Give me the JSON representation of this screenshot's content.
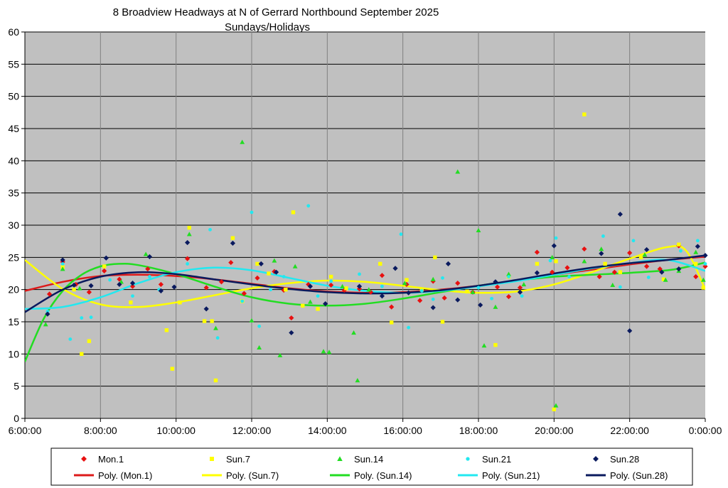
{
  "chart_data": {
    "type": "scatter",
    "title": "8 Broadview Headways at N of Gerrard Northbound September 2025",
    "subtitle": "Sundays/Holidays",
    "xlabel": "",
    "ylabel": "",
    "x_unit": "hours",
    "xlim": [
      6,
      24
    ],
    "ylim": [
      0,
      60
    ],
    "x_ticks": [
      "6:00:00",
      "8:00:00",
      "10:00:00",
      "12:00:00",
      "14:00:00",
      "16:00:00",
      "18:00:00",
      "20:00:00",
      "22:00:00",
      "0:00:00"
    ],
    "y_ticks": [
      0,
      5,
      10,
      15,
      20,
      25,
      30,
      35,
      40,
      45,
      50,
      55,
      60
    ],
    "grid": true,
    "plot_background": "#c0c0c0",
    "legend_position": "bottom",
    "series": [
      {
        "name": "Mon.1",
        "marker": "diamond",
        "color": "#e81010",
        "points": [
          [
            6.65,
            19.3
          ],
          [
            7.0,
            24.3
          ],
          [
            7.35,
            20.8
          ],
          [
            7.7,
            19.6
          ],
          [
            8.1,
            22.9
          ],
          [
            8.5,
            21.6
          ],
          [
            8.85,
            20.5
          ],
          [
            9.25,
            23.2
          ],
          [
            9.6,
            20.8
          ],
          [
            10.3,
            24.8
          ],
          [
            10.8,
            20.3
          ],
          [
            11.2,
            21.2
          ],
          [
            11.45,
            24.2
          ],
          [
            11.8,
            19.4
          ],
          [
            12.15,
            21.8
          ],
          [
            12.6,
            22.8
          ],
          [
            12.85,
            19.9
          ],
          [
            13.05,
            15.6
          ],
          [
            13.5,
            20.8
          ],
          [
            14.1,
            20.7
          ],
          [
            14.45,
            19.9
          ],
          [
            14.85,
            20.1
          ],
          [
            15.15,
            19.6
          ],
          [
            15.45,
            22.2
          ],
          [
            15.7,
            17.3
          ],
          [
            16.1,
            20.8
          ],
          [
            16.45,
            18.3
          ],
          [
            16.8,
            21.3
          ],
          [
            17.1,
            18.7
          ],
          [
            17.45,
            21.0
          ],
          [
            17.85,
            19.6
          ],
          [
            18.5,
            20.4
          ],
          [
            18.8,
            18.9
          ],
          [
            19.1,
            20.3
          ],
          [
            19.55,
            25.8
          ],
          [
            19.95,
            22.7
          ],
          [
            20.35,
            23.4
          ],
          [
            20.8,
            26.3
          ],
          [
            21.2,
            22.0
          ],
          [
            21.6,
            22.7
          ],
          [
            22.0,
            25.7
          ],
          [
            22.45,
            23.6
          ],
          [
            22.8,
            23.2
          ],
          [
            23.3,
            26.8
          ],
          [
            23.75,
            22.0
          ],
          [
            24.0,
            23.6
          ]
        ]
      },
      {
        "name": "Sun.7",
        "marker": "square",
        "color": "#ffff00",
        "points": [
          [
            7.0,
            23.5
          ],
          [
            7.3,
            20.0
          ],
          [
            7.5,
            10.0
          ],
          [
            7.7,
            12.0
          ],
          [
            8.1,
            23.6
          ],
          [
            8.8,
            18.0
          ],
          [
            9.75,
            13.7
          ],
          [
            9.9,
            7.7
          ],
          [
            10.1,
            18.0
          ],
          [
            10.35,
            29.6
          ],
          [
            10.75,
            15.1
          ],
          [
            10.95,
            15.1
          ],
          [
            11.05,
            5.9
          ],
          [
            11.5,
            28.0
          ],
          [
            11.75,
            18.2
          ],
          [
            12.15,
            24.0
          ],
          [
            12.45,
            22.5
          ],
          [
            12.9,
            20.0
          ],
          [
            13.1,
            32.0
          ],
          [
            13.35,
            17.5
          ],
          [
            13.75,
            17.0
          ],
          [
            14.1,
            22.0
          ],
          [
            14.5,
            20.2
          ],
          [
            15.4,
            24.0
          ],
          [
            15.7,
            14.9
          ],
          [
            16.1,
            21.5
          ],
          [
            16.5,
            20.0
          ],
          [
            16.85,
            25.0
          ],
          [
            17.05,
            15.0
          ],
          [
            17.7,
            19.7
          ],
          [
            18.45,
            11.4
          ],
          [
            18.8,
            22.0
          ],
          [
            19.55,
            24.0
          ],
          [
            20.0,
            1.4
          ],
          [
            20.05,
            24.4
          ],
          [
            20.8,
            47.2
          ],
          [
            21.35,
            24.0
          ],
          [
            21.75,
            22.7
          ],
          [
            22.3,
            25.0
          ],
          [
            22.9,
            21.6
          ],
          [
            23.3,
            27.0
          ],
          [
            23.75,
            24.0
          ],
          [
            23.95,
            20.3
          ]
        ]
      },
      {
        "name": "Sun.14",
        "marker": "triangle",
        "color": "#22dd22",
        "points": [
          [
            6.55,
            14.6
          ],
          [
            7.0,
            23.2
          ],
          [
            7.45,
            20.2
          ],
          [
            8.55,
            21.2
          ],
          [
            9.2,
            25.5
          ],
          [
            10.35,
            28.6
          ],
          [
            11.05,
            14.0
          ],
          [
            11.75,
            42.9
          ],
          [
            12.0,
            15.2
          ],
          [
            12.2,
            11.0
          ],
          [
            12.6,
            24.5
          ],
          [
            12.75,
            9.8
          ],
          [
            13.15,
            23.6
          ],
          [
            13.55,
            18.1
          ],
          [
            13.9,
            10.4
          ],
          [
            14.05,
            10.3
          ],
          [
            14.4,
            20.5
          ],
          [
            14.7,
            13.3
          ],
          [
            14.8,
            5.9
          ],
          [
            15.1,
            20.0
          ],
          [
            16.05,
            21.0
          ],
          [
            16.8,
            21.6
          ],
          [
            17.45,
            38.3
          ],
          [
            17.85,
            19.6
          ],
          [
            18.0,
            29.2
          ],
          [
            18.15,
            11.3
          ],
          [
            18.45,
            17.3
          ],
          [
            18.8,
            22.4
          ],
          [
            19.2,
            20.8
          ],
          [
            19.95,
            25.0
          ],
          [
            20.05,
            2.0
          ],
          [
            20.8,
            24.4
          ],
          [
            21.25,
            26.3
          ],
          [
            21.55,
            20.7
          ],
          [
            22.4,
            25.4
          ],
          [
            22.95,
            21.5
          ],
          [
            23.3,
            22.9
          ],
          [
            23.75,
            25.8
          ],
          [
            23.95,
            21.5
          ]
        ]
      },
      {
        "name": "Sun.21",
        "marker": "circle",
        "color": "#22e8f0",
        "points": [
          [
            6.6,
            16.6
          ],
          [
            7.0,
            24.0
          ],
          [
            7.2,
            12.3
          ],
          [
            7.5,
            15.6
          ],
          [
            7.75,
            15.7
          ],
          [
            8.25,
            21.5
          ],
          [
            8.85,
            19.0
          ],
          [
            9.3,
            22.0
          ],
          [
            9.55,
            20.0
          ],
          [
            10.3,
            24.0
          ],
          [
            10.9,
            29.3
          ],
          [
            11.1,
            12.5
          ],
          [
            11.75,
            18.2
          ],
          [
            12.0,
            32.0
          ],
          [
            12.2,
            14.3
          ],
          [
            12.5,
            20.0
          ],
          [
            12.85,
            22.0
          ],
          [
            13.5,
            33.0
          ],
          [
            13.75,
            19.0
          ],
          [
            14.1,
            21.3
          ],
          [
            14.85,
            22.4
          ],
          [
            15.45,
            20.5
          ],
          [
            15.95,
            28.6
          ],
          [
            16.15,
            14.1
          ],
          [
            16.5,
            19.8
          ],
          [
            16.8,
            18.5
          ],
          [
            17.05,
            21.8
          ],
          [
            18.0,
            20.3
          ],
          [
            18.35,
            18.6
          ],
          [
            18.8,
            22.0
          ],
          [
            19.15,
            19.0
          ],
          [
            19.9,
            24.5
          ],
          [
            20.05,
            28.0
          ],
          [
            20.4,
            22.0
          ],
          [
            21.3,
            28.3
          ],
          [
            21.75,
            20.4
          ],
          [
            22.1,
            27.6
          ],
          [
            22.5,
            21.9
          ],
          [
            23.35,
            26.0
          ],
          [
            23.8,
            27.6
          ],
          [
            24.0,
            24.0
          ]
        ]
      },
      {
        "name": "Sun.28",
        "marker": "diamond",
        "color": "#0a1a5e",
        "points": [
          [
            6.6,
            16.2
          ],
          [
            7.0,
            24.6
          ],
          [
            7.3,
            20.7
          ],
          [
            7.75,
            20.6
          ],
          [
            8.15,
            24.9
          ],
          [
            8.5,
            20.8
          ],
          [
            8.85,
            21.0
          ],
          [
            9.3,
            25.1
          ],
          [
            9.6,
            19.8
          ],
          [
            9.95,
            20.4
          ],
          [
            10.3,
            27.3
          ],
          [
            10.8,
            17.0
          ],
          [
            11.5,
            27.2
          ],
          [
            12.25,
            24.0
          ],
          [
            12.65,
            22.7
          ],
          [
            13.05,
            13.3
          ],
          [
            13.55,
            20.5
          ],
          [
            13.95,
            17.8
          ],
          [
            14.85,
            20.5
          ],
          [
            15.45,
            19.0
          ],
          [
            15.8,
            23.3
          ],
          [
            16.15,
            19.5
          ],
          [
            16.8,
            17.2
          ],
          [
            17.2,
            24.0
          ],
          [
            17.45,
            18.4
          ],
          [
            18.05,
            17.6
          ],
          [
            18.45,
            21.2
          ],
          [
            19.1,
            19.6
          ],
          [
            19.55,
            22.6
          ],
          [
            20.0,
            26.8
          ],
          [
            21.25,
            25.6
          ],
          [
            21.75,
            31.7
          ],
          [
            22.0,
            13.6
          ],
          [
            22.45,
            26.2
          ],
          [
            22.85,
            22.7
          ],
          [
            23.3,
            23.2
          ],
          [
            23.8,
            26.7
          ],
          [
            24.0,
            25.3
          ]
        ]
      }
    ],
    "trendlines": [
      {
        "name": "Poly. (Mon.1)",
        "color": "#dd1a1a",
        "order": 6,
        "x": [
          6,
          7,
          8,
          9,
          10,
          11,
          12,
          13,
          14,
          15,
          16,
          17,
          18,
          19,
          20,
          21,
          22,
          23,
          24
        ],
        "y": [
          19.8,
          21.2,
          22.1,
          22.3,
          22.1,
          21.6,
          20.9,
          20.2,
          19.7,
          19.5,
          19.6,
          20.0,
          20.6,
          21.4,
          22.3,
          23.1,
          23.9,
          24.6,
          25.1
        ]
      },
      {
        "name": "Poly. (Sun.7)",
        "color": "#ffff00",
        "order": 6,
        "x": [
          6,
          7,
          8,
          9,
          10,
          11,
          12,
          13,
          14,
          15,
          16,
          17,
          18,
          19,
          20,
          21,
          22,
          23,
          23.5,
          24
        ],
        "y": [
          24.6,
          20.1,
          17.7,
          17.3,
          18.0,
          19.1,
          20.2,
          21.0,
          21.4,
          21.2,
          20.6,
          19.9,
          19.5,
          19.7,
          20.8,
          22.7,
          24.8,
          26.6,
          26.0,
          20.0
        ]
      },
      {
        "name": "Poly. (Sun.14)",
        "color": "#22dd22",
        "order": 6,
        "x": [
          6,
          6.5,
          7,
          7.5,
          8,
          8.5,
          9,
          10,
          11,
          12,
          13,
          14,
          15,
          16,
          17,
          18,
          19,
          20,
          21,
          22,
          23,
          23.5,
          24
        ],
        "y": [
          8.8,
          15.5,
          19.8,
          22.3,
          23.6,
          24.0,
          23.8,
          22.4,
          20.5,
          18.8,
          17.8,
          17.5,
          17.8,
          18.6,
          19.6,
          20.6,
          21.4,
          22.0,
          22.3,
          22.6,
          23.0,
          23.5,
          24.2
        ]
      },
      {
        "name": "Poly. (Sun.21)",
        "color": "#22e8f0",
        "order": 6,
        "x": [
          6,
          7,
          8,
          9,
          10,
          11,
          12,
          13,
          14,
          15,
          16,
          17,
          18,
          19,
          20,
          21,
          22,
          23,
          24
        ],
        "y": [
          17.0,
          17.3,
          18.8,
          21.0,
          22.7,
          23.4,
          23.0,
          21.8,
          20.6,
          19.8,
          19.5,
          19.8,
          20.5,
          21.3,
          22.3,
          23.3,
          24.1,
          24.6,
          22.9
        ]
      },
      {
        "name": "Poly. (Sun.28)",
        "color": "#0a1a5e",
        "order": 6,
        "x": [
          6,
          7,
          8,
          9,
          10,
          11,
          12,
          13,
          14,
          15,
          16,
          17,
          18,
          19,
          20,
          21,
          22,
          23,
          24
        ],
        "y": [
          16.5,
          20.0,
          22.0,
          22.7,
          22.4,
          21.6,
          20.8,
          20.1,
          19.6,
          19.4,
          19.5,
          19.9,
          20.6,
          21.5,
          22.5,
          23.4,
          24.1,
          24.6,
          25.3
        ]
      }
    ]
  }
}
